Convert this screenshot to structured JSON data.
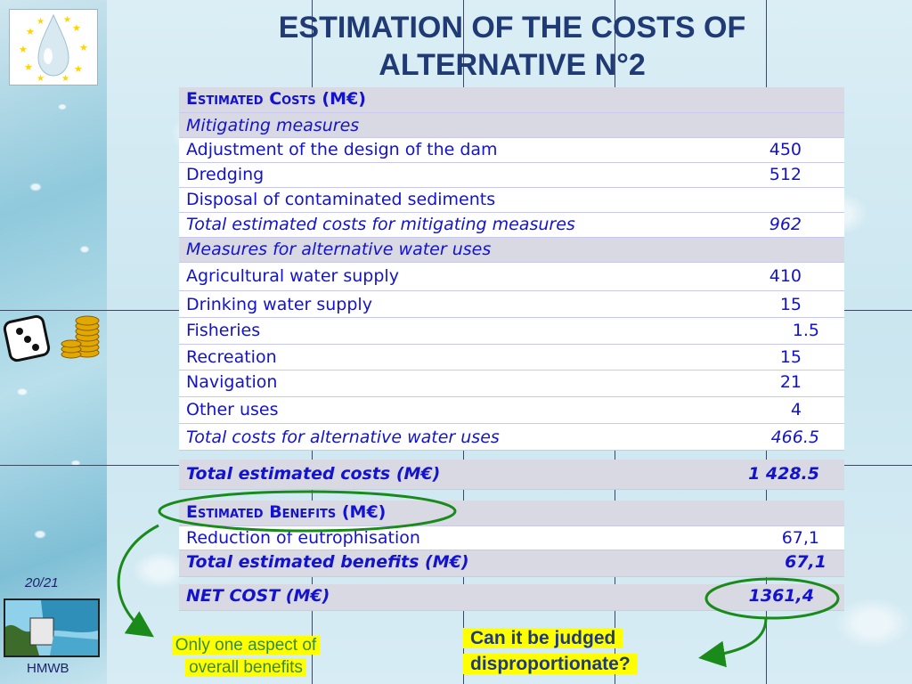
{
  "title": "ESTIMATION OF THE COSTS OF ALTERNATIVE N°2",
  "colors": {
    "title": "#1f3a74",
    "table_text": "#1313cf",
    "header_bg": "#d9d9e3",
    "highlight": "#ffff00",
    "annotation": "#1a8a1a"
  },
  "costs_header": "Estimated Costs (M€)",
  "mitigating": {
    "section": "Mitigating measures",
    "items": [
      {
        "label": "Adjustment of the design of the dam",
        "value": "450"
      },
      {
        "label": "Dredging",
        "value": "512"
      },
      {
        "label": "Disposal of contaminated sediments",
        "value": ""
      }
    ],
    "total": {
      "label": "Total estimated costs for mitigating measures",
      "value": "962"
    }
  },
  "alt_uses": {
    "section": "Measures for alternative water uses",
    "items": [
      {
        "label": "Agricultural water supply",
        "value": "410"
      },
      {
        "label": "Drinking water supply",
        "value": "15"
      },
      {
        "label": "Fisheries",
        "value": "1.5"
      },
      {
        "label": "Recreation",
        "value": "15"
      },
      {
        "label": "Navigation",
        "value": "21"
      },
      {
        "label": "Other uses",
        "value": "4"
      }
    ],
    "total": {
      "label": "Total costs for alternative water uses",
      "value": "466.5"
    }
  },
  "total_costs": {
    "label": "Total estimated costs (M€)",
    "value": "1 428.5"
  },
  "benefits_header": "Estimated Benefits (M€)",
  "benefits": [
    {
      "label": "Reduction of eutrophisation",
      "value": "67,1"
    }
  ],
  "total_benefits": {
    "label": "Total estimated benefits (M€)",
    "value": "67,1"
  },
  "net_cost": {
    "label": "NET COST (M€)",
    "value": "1361,4"
  },
  "slide_number": "20/21",
  "footer_label": "HMWB",
  "callout_left": {
    "line1": "Only one aspect of",
    "line2": "overall benefits"
  },
  "callout_right": {
    "line1": "Can it be judged",
    "line2": "disproportionate?"
  }
}
